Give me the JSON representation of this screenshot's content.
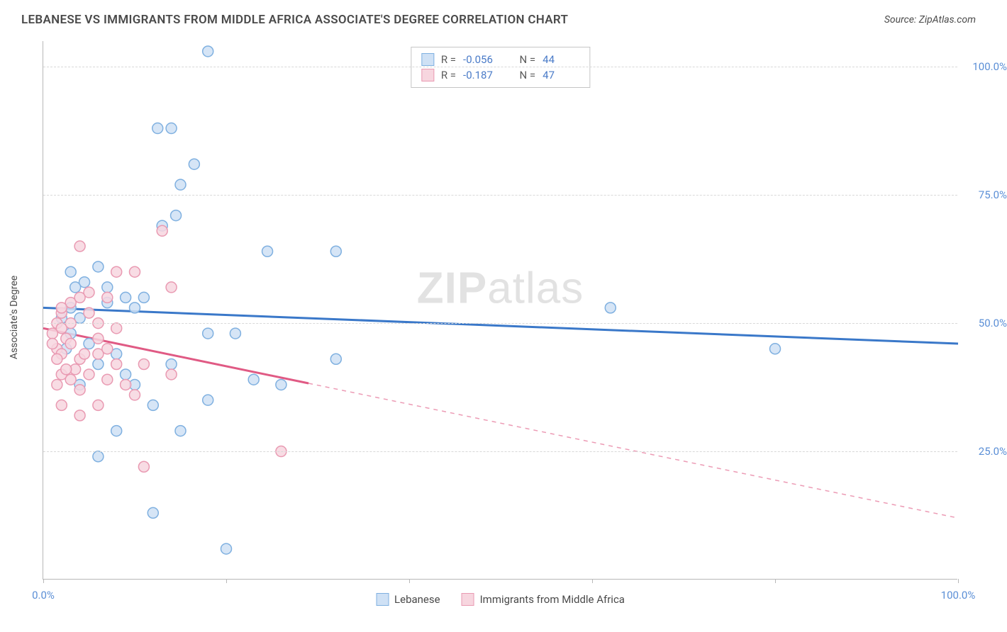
{
  "title": "LEBANESE VS IMMIGRANTS FROM MIDDLE AFRICA ASSOCIATE'S DEGREE CORRELATION CHART",
  "source": "Source: ZipAtlas.com",
  "y_axis_label": "Associate's Degree",
  "watermark_bold": "ZIP",
  "watermark_light": "atlas",
  "chart": {
    "type": "scatter",
    "xlim": [
      0,
      100
    ],
    "ylim": [
      0,
      105
    ],
    "x_ticks": [
      0,
      20,
      40,
      60,
      80,
      100
    ],
    "x_tick_labels": {
      "0": "0.0%",
      "100": "100.0%"
    },
    "y_gridlines": [
      25,
      50,
      75,
      100
    ],
    "y_tick_labels": {
      "25": "25.0%",
      "50": "50.0%",
      "75": "75.0%",
      "100": "100.0%"
    },
    "background_color": "#ffffff",
    "grid_color": "#d8d8d8",
    "axis_color": "#b8b8b8",
    "tick_label_color": "#5b8fd6",
    "marker_radius": 7.5,
    "marker_stroke_width": 1.5,
    "series": [
      {
        "name": "Lebanese",
        "fill": "#cfe1f5",
        "stroke": "#7fb0e0",
        "line_color": "#3a78c9",
        "points": [
          [
            18,
            103
          ],
          [
            12.5,
            88
          ],
          [
            14,
            88
          ],
          [
            16.5,
            81
          ],
          [
            15,
            77
          ],
          [
            14.5,
            71
          ],
          [
            13,
            69
          ],
          [
            24.5,
            64
          ],
          [
            32,
            64
          ],
          [
            3,
            60
          ],
          [
            6,
            61
          ],
          [
            4.5,
            58
          ],
          [
            3.5,
            57
          ],
          [
            7,
            57
          ],
          [
            7,
            54
          ],
          [
            3,
            53
          ],
          [
            4,
            51
          ],
          [
            2,
            51
          ],
          [
            9,
            55
          ],
          [
            11,
            55
          ],
          [
            10,
            53
          ],
          [
            62,
            53
          ],
          [
            80,
            45
          ],
          [
            18,
            48
          ],
          [
            21,
            48
          ],
          [
            32,
            43
          ],
          [
            23,
            39
          ],
          [
            26,
            38
          ],
          [
            10,
            38
          ],
          [
            18,
            35
          ],
          [
            12,
            34
          ],
          [
            15,
            29
          ],
          [
            8,
            29
          ],
          [
            6,
            24
          ],
          [
            12,
            13
          ],
          [
            20,
            6
          ],
          [
            5,
            46
          ],
          [
            8,
            44
          ],
          [
            3,
            48
          ],
          [
            2.5,
            45
          ],
          [
            6,
            42
          ],
          [
            9,
            40
          ],
          [
            4,
            38
          ],
          [
            14,
            42
          ]
        ],
        "trend": {
          "x1": 0,
          "y1": 53,
          "x2": 100,
          "y2": 46,
          "solid_until_x": 100
        }
      },
      {
        "name": "Immigrants from Middle Africa",
        "fill": "#f7d6df",
        "stroke": "#e99ab2",
        "line_color": "#e05a84",
        "points": [
          [
            13,
            68
          ],
          [
            4,
            65
          ],
          [
            8,
            60
          ],
          [
            10,
            60
          ],
          [
            5,
            56
          ],
          [
            7,
            55
          ],
          [
            14,
            57
          ],
          [
            2,
            52
          ],
          [
            1.5,
            50
          ],
          [
            2,
            49
          ],
          [
            1,
            48
          ],
          [
            2.5,
            47
          ],
          [
            3,
            46
          ],
          [
            1.5,
            45
          ],
          [
            2,
            44
          ],
          [
            4,
            43
          ],
          [
            6,
            44
          ],
          [
            3.5,
            41
          ],
          [
            5,
            40
          ],
          [
            2,
            40
          ],
          [
            1.5,
            38
          ],
          [
            4,
            37
          ],
          [
            7,
            39
          ],
          [
            11,
            42
          ],
          [
            14,
            40
          ],
          [
            10,
            36
          ],
          [
            6,
            34
          ],
          [
            4,
            32
          ],
          [
            2,
            34
          ],
          [
            11,
            22
          ],
          [
            26,
            25
          ],
          [
            3,
            54
          ],
          [
            5,
            52
          ],
          [
            6,
            50
          ],
          [
            8,
            49
          ],
          [
            3,
            50
          ],
          [
            2,
            53
          ],
          [
            4,
            55
          ],
          [
            1,
            46
          ],
          [
            1.5,
            43
          ],
          [
            2.5,
            41
          ],
          [
            3,
            39
          ],
          [
            4.5,
            44
          ],
          [
            6,
            47
          ],
          [
            7,
            45
          ],
          [
            8,
            42
          ],
          [
            9,
            38
          ]
        ],
        "trend": {
          "x1": 0,
          "y1": 49,
          "x2": 100,
          "y2": 12,
          "solid_until_x": 29
        }
      }
    ],
    "stats": [
      {
        "R_label": "R =",
        "R": "-0.056",
        "N_label": "N =",
        "N": "44",
        "fill": "#cfe1f5",
        "stroke": "#7fb0e0"
      },
      {
        "R_label": "R =",
        "R": "-0.187",
        "N_label": "N =",
        "N": "47",
        "fill": "#f7d6df",
        "stroke": "#e99ab2"
      }
    ]
  }
}
